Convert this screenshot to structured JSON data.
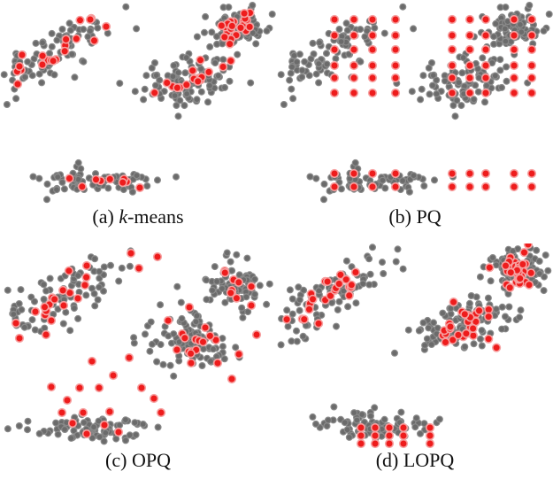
{
  "figure": {
    "panels": [
      {
        "id": "a",
        "prefix": "(a) ",
        "method": "k",
        "suffix": "-means",
        "method_italic": true
      },
      {
        "id": "b",
        "prefix": "(b) ",
        "method": "PQ",
        "suffix": "",
        "method_italic": false
      },
      {
        "id": "c",
        "prefix": "(c) ",
        "method": "OPQ",
        "suffix": "",
        "method_italic": false
      },
      {
        "id": "d",
        "prefix": "(d) ",
        "method": "LOPQ",
        "suffix": "",
        "method_italic": false
      }
    ],
    "colors": {
      "data_point": "#6b6b6b",
      "centroid": "#ee1c1c",
      "background": "#ffffff"
    }
  }
}
